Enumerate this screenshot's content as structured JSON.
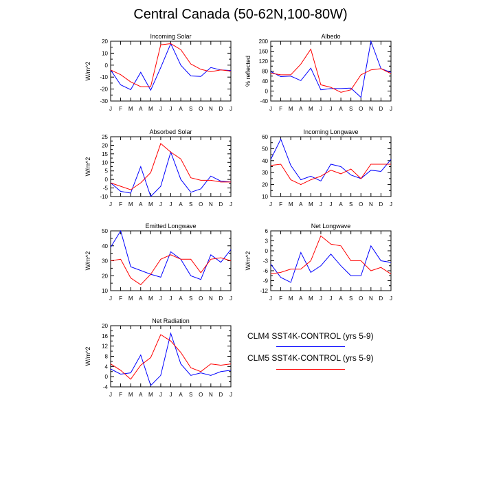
{
  "title": "Central Canada (50-62N,100-80W)",
  "colors": {
    "clm4": "#0000ff",
    "clm5": "#ff0000"
  },
  "legend": [
    {
      "label": "CLM4 SST4K-CONTROL (yrs 5-9)",
      "color": "#0000ff"
    },
    {
      "label": "CLM5 SST4K-CONTROL (yrs 5-9)",
      "color": "#ff0000"
    }
  ],
  "chart_data": [
    {
      "type": "line",
      "title": "Incoming Solar",
      "ylabel": "W/m^2",
      "x": [
        "J",
        "F",
        "M",
        "A",
        "M",
        "J",
        "J",
        "A",
        "S",
        "O",
        "N",
        "D",
        "J"
      ],
      "ylim": [
        -30,
        20
      ],
      "yticks": [
        -30,
        -20,
        -10,
        0,
        10,
        20
      ],
      "series": [
        {
          "values": [
            -4,
            -16.5,
            -20.5,
            -6,
            -21,
            -2,
            18,
            0,
            -9,
            -9.5,
            -2,
            -4,
            -4.5
          ]
        },
        {
          "values": [
            -4,
            -8,
            -14,
            -18,
            -18,
            17,
            18,
            13,
            1,
            -3.5,
            -5.5,
            -4,
            -5
          ]
        }
      ]
    },
    {
      "type": "line",
      "title": "Albedo",
      "ylabel": "% reflected",
      "x": [
        "J",
        "F",
        "M",
        "A",
        "M",
        "J",
        "J",
        "A",
        "S",
        "O",
        "N",
        "D",
        "J"
      ],
      "ylim": [
        -40,
        200
      ],
      "yticks": [
        -40,
        0,
        40,
        80,
        120,
        160,
        200
      ],
      "series": [
        {
          "values": [
            78,
            58,
            60,
            42,
            92,
            5,
            10,
            10,
            12,
            -25,
            200,
            90,
            75
          ]
        },
        {
          "values": [
            72,
            65,
            65,
            108,
            168,
            25,
            15,
            -5,
            5,
            65,
            85,
            90,
            70
          ]
        }
      ]
    },
    {
      "type": "line",
      "title": "Absorbed Solar",
      "ylabel": "W/m^2",
      "x": [
        "J",
        "F",
        "M",
        "A",
        "M",
        "J",
        "J",
        "A",
        "S",
        "O",
        "N",
        "D",
        "J"
      ],
      "ylim": [
        -10,
        25
      ],
      "yticks": [
        -10,
        -5,
        0,
        5,
        10,
        15,
        20,
        25
      ],
      "series": [
        {
          "values": [
            -2,
            -7,
            -8,
            7.5,
            -10,
            -4,
            16,
            0,
            -7.5,
            -5.5,
            2,
            -1,
            -1.5
          ]
        },
        {
          "values": [
            -2,
            -4,
            -6,
            -2,
            4,
            21,
            16,
            12,
            1,
            -0.5,
            -0.5,
            -1.5,
            -1.5
          ]
        }
      ]
    },
    {
      "type": "line",
      "title": "Incoming Longwave",
      "ylabel": "",
      "x": [
        "J",
        "F",
        "M",
        "A",
        "M",
        "J",
        "J",
        "A",
        "S",
        "O",
        "N",
        "D",
        "J"
      ],
      "ylim": [
        10,
        60
      ],
      "yticks": [
        10,
        20,
        30,
        40,
        50,
        60
      ],
      "series": [
        {
          "values": [
            41,
            58,
            36,
            24,
            27,
            23,
            37,
            35,
            28,
            25,
            32,
            31,
            41
          ]
        },
        {
          "values": [
            36,
            37,
            24,
            20,
            24,
            27,
            32,
            29,
            33,
            25,
            37,
            37,
            37
          ]
        }
      ]
    },
    {
      "type": "line",
      "title": "Emitted Longwave",
      "ylabel": "W/m^2",
      "x": [
        "J",
        "F",
        "M",
        "A",
        "M",
        "J",
        "J",
        "A",
        "S",
        "O",
        "N",
        "D",
        "J"
      ],
      "ylim": [
        10,
        50
      ],
      "yticks": [
        10,
        20,
        30,
        40,
        50
      ],
      "series": [
        {
          "values": [
            39,
            50,
            26,
            23.5,
            21,
            19,
            36,
            31,
            20,
            17.5,
            34,
            29,
            37.5
          ]
        },
        {
          "values": [
            30,
            31,
            18.5,
            14,
            21,
            31,
            34,
            31,
            31,
            22,
            31,
            32,
            30
          ]
        }
      ]
    },
    {
      "type": "line",
      "title": "Net Longwave",
      "ylabel": "W/m^2",
      "x": [
        "J",
        "F",
        "M",
        "A",
        "M",
        "J",
        "J",
        "A",
        "S",
        "O",
        "N",
        "D",
        "J"
      ],
      "ylim": [
        -12,
        6
      ],
      "yticks": [
        -12,
        -9,
        -6,
        -3,
        0,
        3,
        6
      ],
      "series": [
        {
          "values": [
            -4,
            -8,
            -9.5,
            -0.5,
            -6.5,
            -4.5,
            -1,
            -4.5,
            -7.5,
            -7.5,
            1.5,
            -3,
            -3.5
          ]
        },
        {
          "values": [
            -7,
            -6.5,
            -5.5,
            -5.5,
            -3,
            4.5,
            2,
            1.5,
            -3,
            -3,
            -6,
            -5,
            -7
          ]
        }
      ]
    },
    {
      "type": "line",
      "title": "Net Radiation",
      "ylabel": "W/m^2",
      "x": [
        "J",
        "F",
        "M",
        "A",
        "M",
        "J",
        "J",
        "A",
        "S",
        "O",
        "N",
        "D",
        "J"
      ],
      "ylim": [
        -4,
        20
      ],
      "yticks": [
        -4,
        0,
        4,
        8,
        12,
        16,
        20
      ],
      "series": [
        {
          "values": [
            3,
            1,
            1.5,
            8.5,
            -3.5,
            0.5,
            17,
            5,
            0.5,
            1.5,
            0.5,
            2,
            2.5
          ]
        },
        {
          "values": [
            5,
            2.5,
            -1,
            4.5,
            7.5,
            16.5,
            14,
            9.5,
            3.5,
            2,
            5,
            4.5,
            5
          ]
        }
      ]
    }
  ]
}
